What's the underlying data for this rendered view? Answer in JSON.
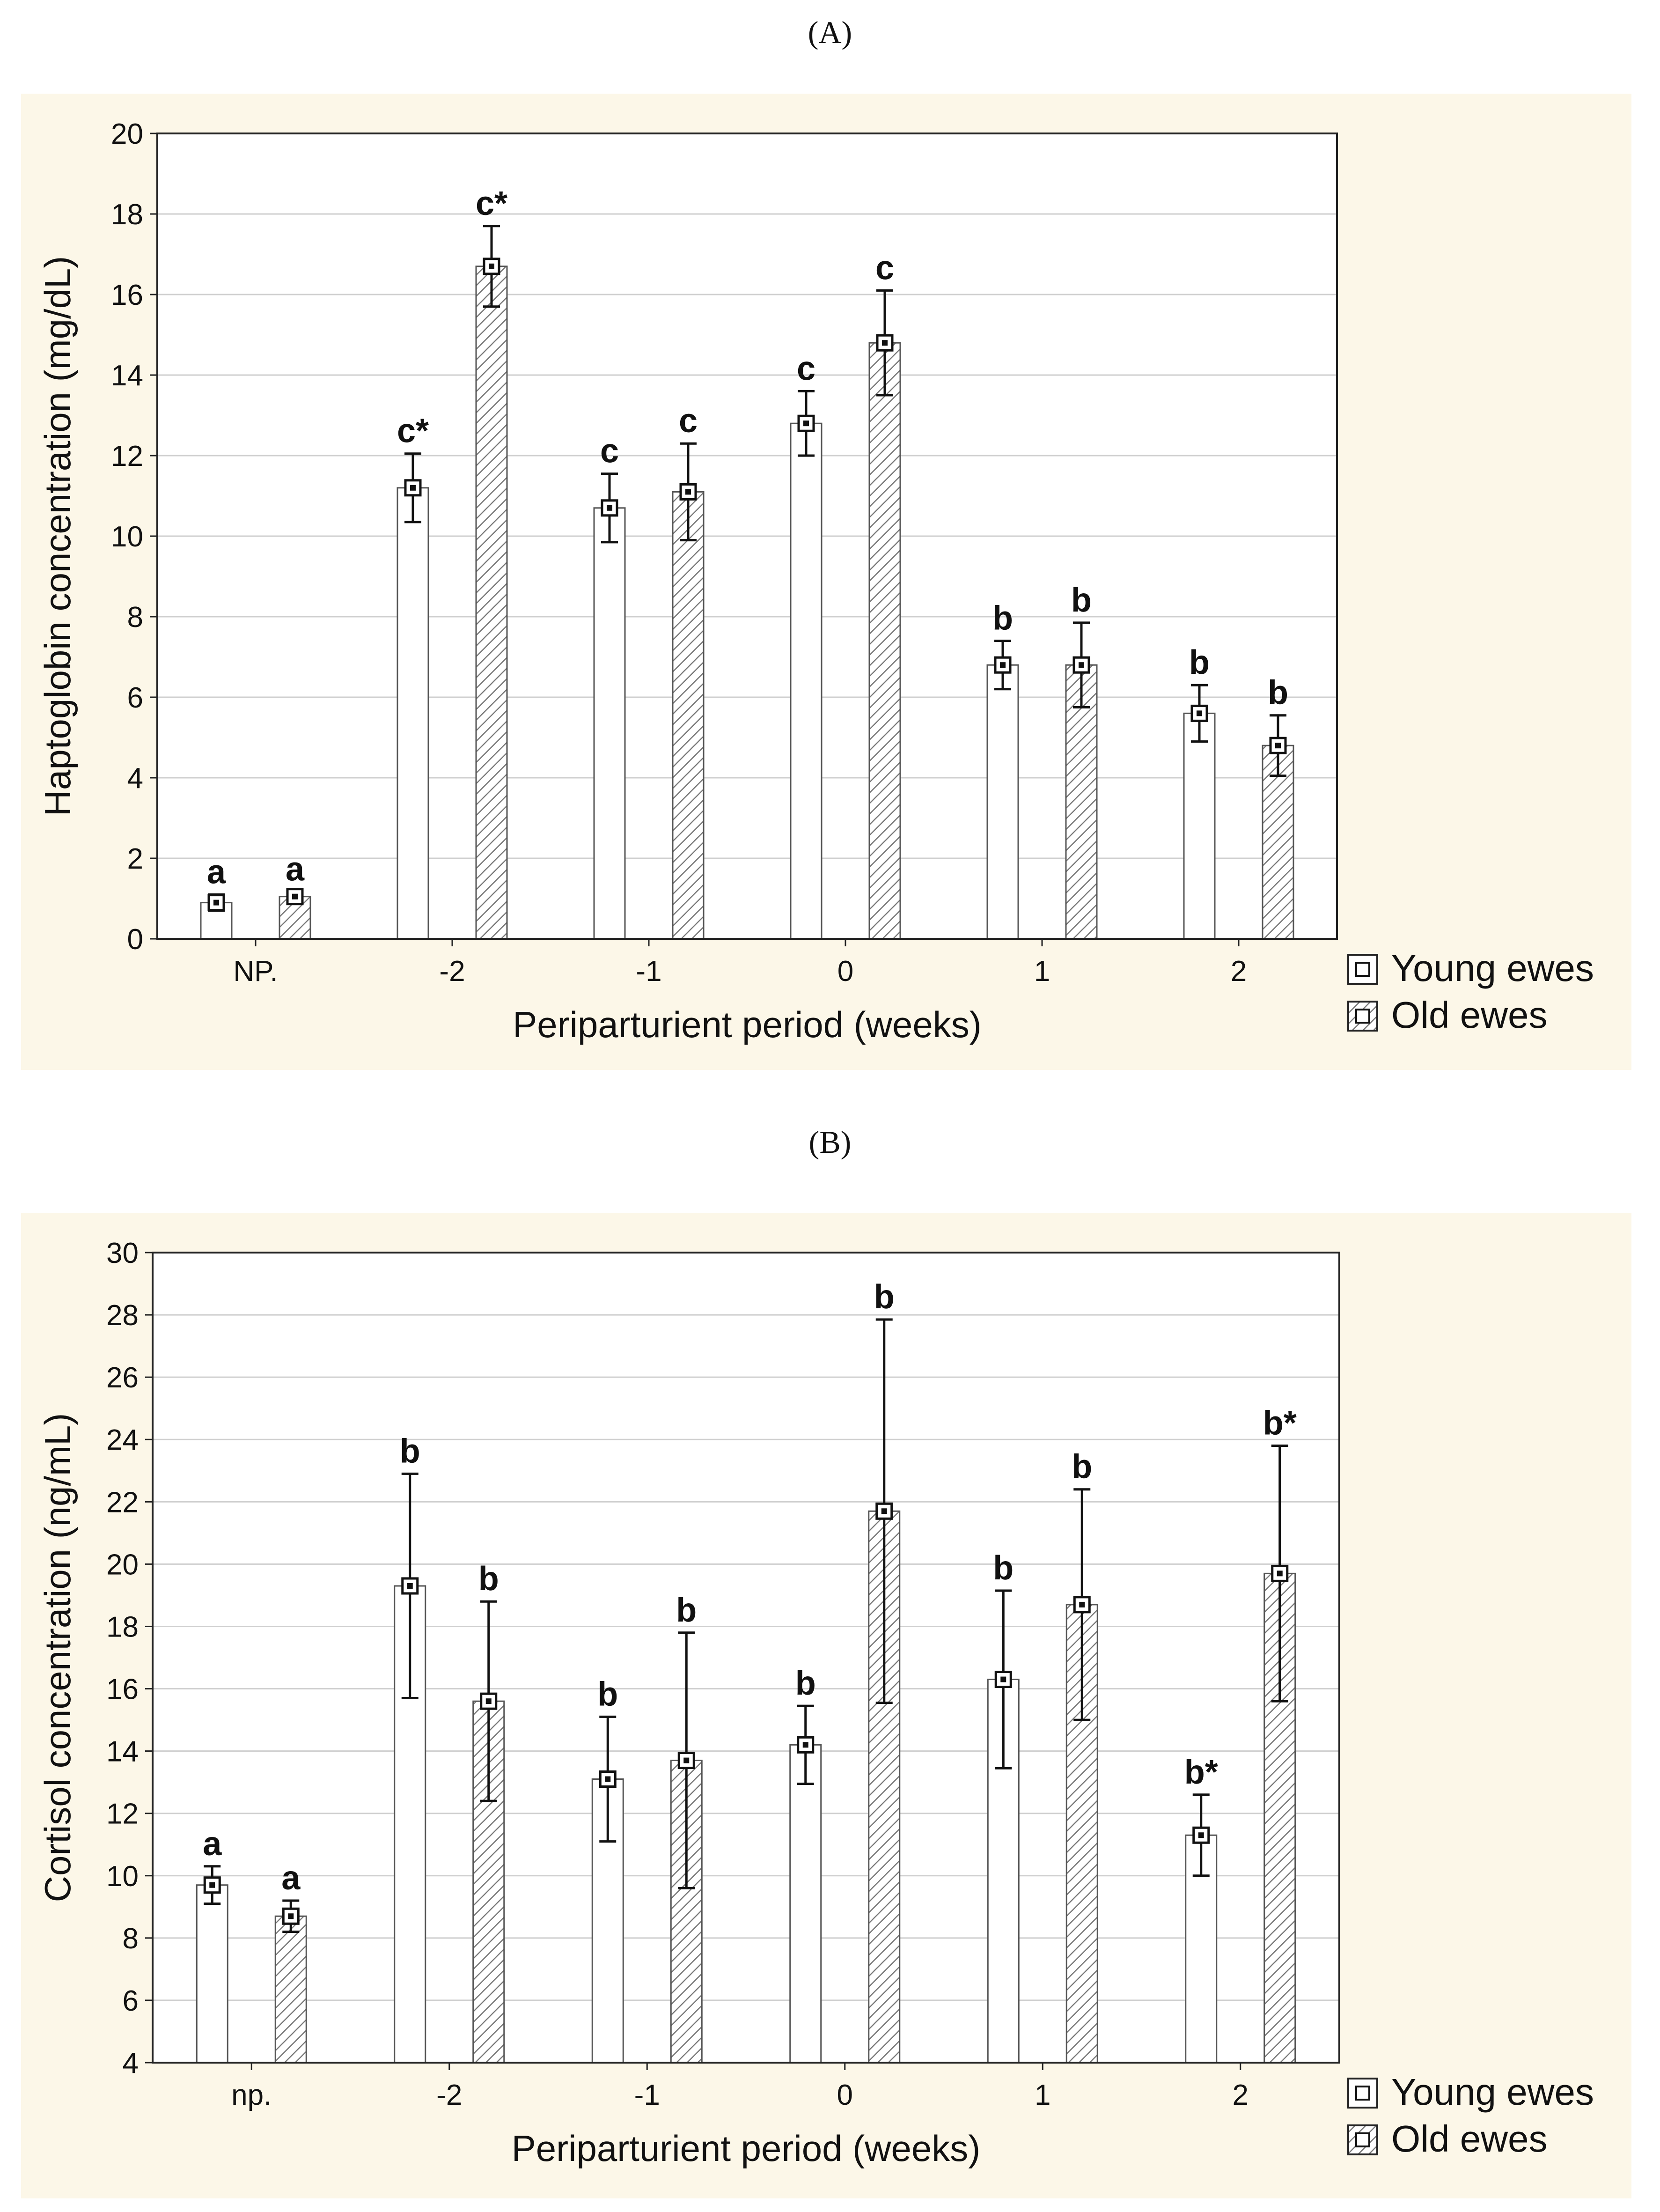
{
  "chart_data": [
    {
      "type": "bar",
      "panel_label": "(A)",
      "categories": [
        "NP.",
        "-2",
        "-1",
        "0",
        "1",
        "2"
      ],
      "series": [
        {
          "name": "Young ewes",
          "values": [
            0.9,
            11.2,
            10.7,
            12.8,
            6.8,
            5.6
          ],
          "errors": [
            0.2,
            0.85,
            0.85,
            0.8,
            0.6,
            0.7
          ],
          "labels": [
            "a",
            "c*",
            "c",
            "c",
            "b",
            "b"
          ],
          "pattern": "plain"
        },
        {
          "name": "Old ewes",
          "values": [
            1.05,
            16.7,
            11.1,
            14.8,
            6.8,
            4.8
          ],
          "errors": [
            0.12,
            1.0,
            1.2,
            1.3,
            1.05,
            0.75
          ],
          "labels": [
            "a",
            "c*",
            "c",
            "c",
            "b",
            "b"
          ],
          "pattern": "hatched"
        }
      ],
      "xlabel": "Periparturient period (weeks)",
      "ylabel": "Haptoglobin concentration (mg/dL)",
      "ylim": [
        0,
        20
      ],
      "yticks": [
        0,
        2,
        4,
        6,
        8,
        10,
        12,
        14,
        16,
        18,
        20
      ],
      "grid": true,
      "legend": "right-bottom",
      "colors": {
        "background": "#fcf7e8",
        "bar": "#ffffff",
        "stroke": "#555555",
        "grid": "#cfcfcf"
      }
    },
    {
      "type": "bar",
      "panel_label": "(B)",
      "categories": [
        "np.",
        "-2",
        "-1",
        "0",
        "1",
        "2"
      ],
      "series": [
        {
          "name": "Young ewes",
          "values": [
            9.7,
            19.3,
            13.1,
            14.2,
            16.3,
            11.3
          ],
          "errors": [
            0.6,
            3.6,
            2.0,
            1.25,
            2.85,
            1.3
          ],
          "labels": [
            "a",
            "b",
            "b",
            "b",
            "b",
            "b*"
          ],
          "pattern": "plain"
        },
        {
          "name": "Old ewes",
          "values": [
            8.7,
            15.6,
            13.7,
            21.7,
            18.7,
            19.7
          ],
          "errors": [
            0.5,
            3.2,
            4.1,
            6.15,
            3.7,
            4.1
          ],
          "labels": [
            "a",
            "b",
            "b",
            "b",
            "b",
            "b*"
          ],
          "pattern": "hatched"
        }
      ],
      "xlabel": "Periparturient period (weeks)",
      "ylabel": "Cortisol concentration (ng/mL)",
      "ylim": [
        4,
        30
      ],
      "yticks": [
        4,
        6,
        8,
        10,
        12,
        14,
        16,
        18,
        20,
        22,
        24,
        26,
        28,
        30
      ],
      "grid": true,
      "legend": "right-bottom",
      "colors": {
        "background": "#fcf7e8",
        "bar": "#ffffff",
        "stroke": "#555555",
        "grid": "#cfcfcf"
      }
    }
  ]
}
